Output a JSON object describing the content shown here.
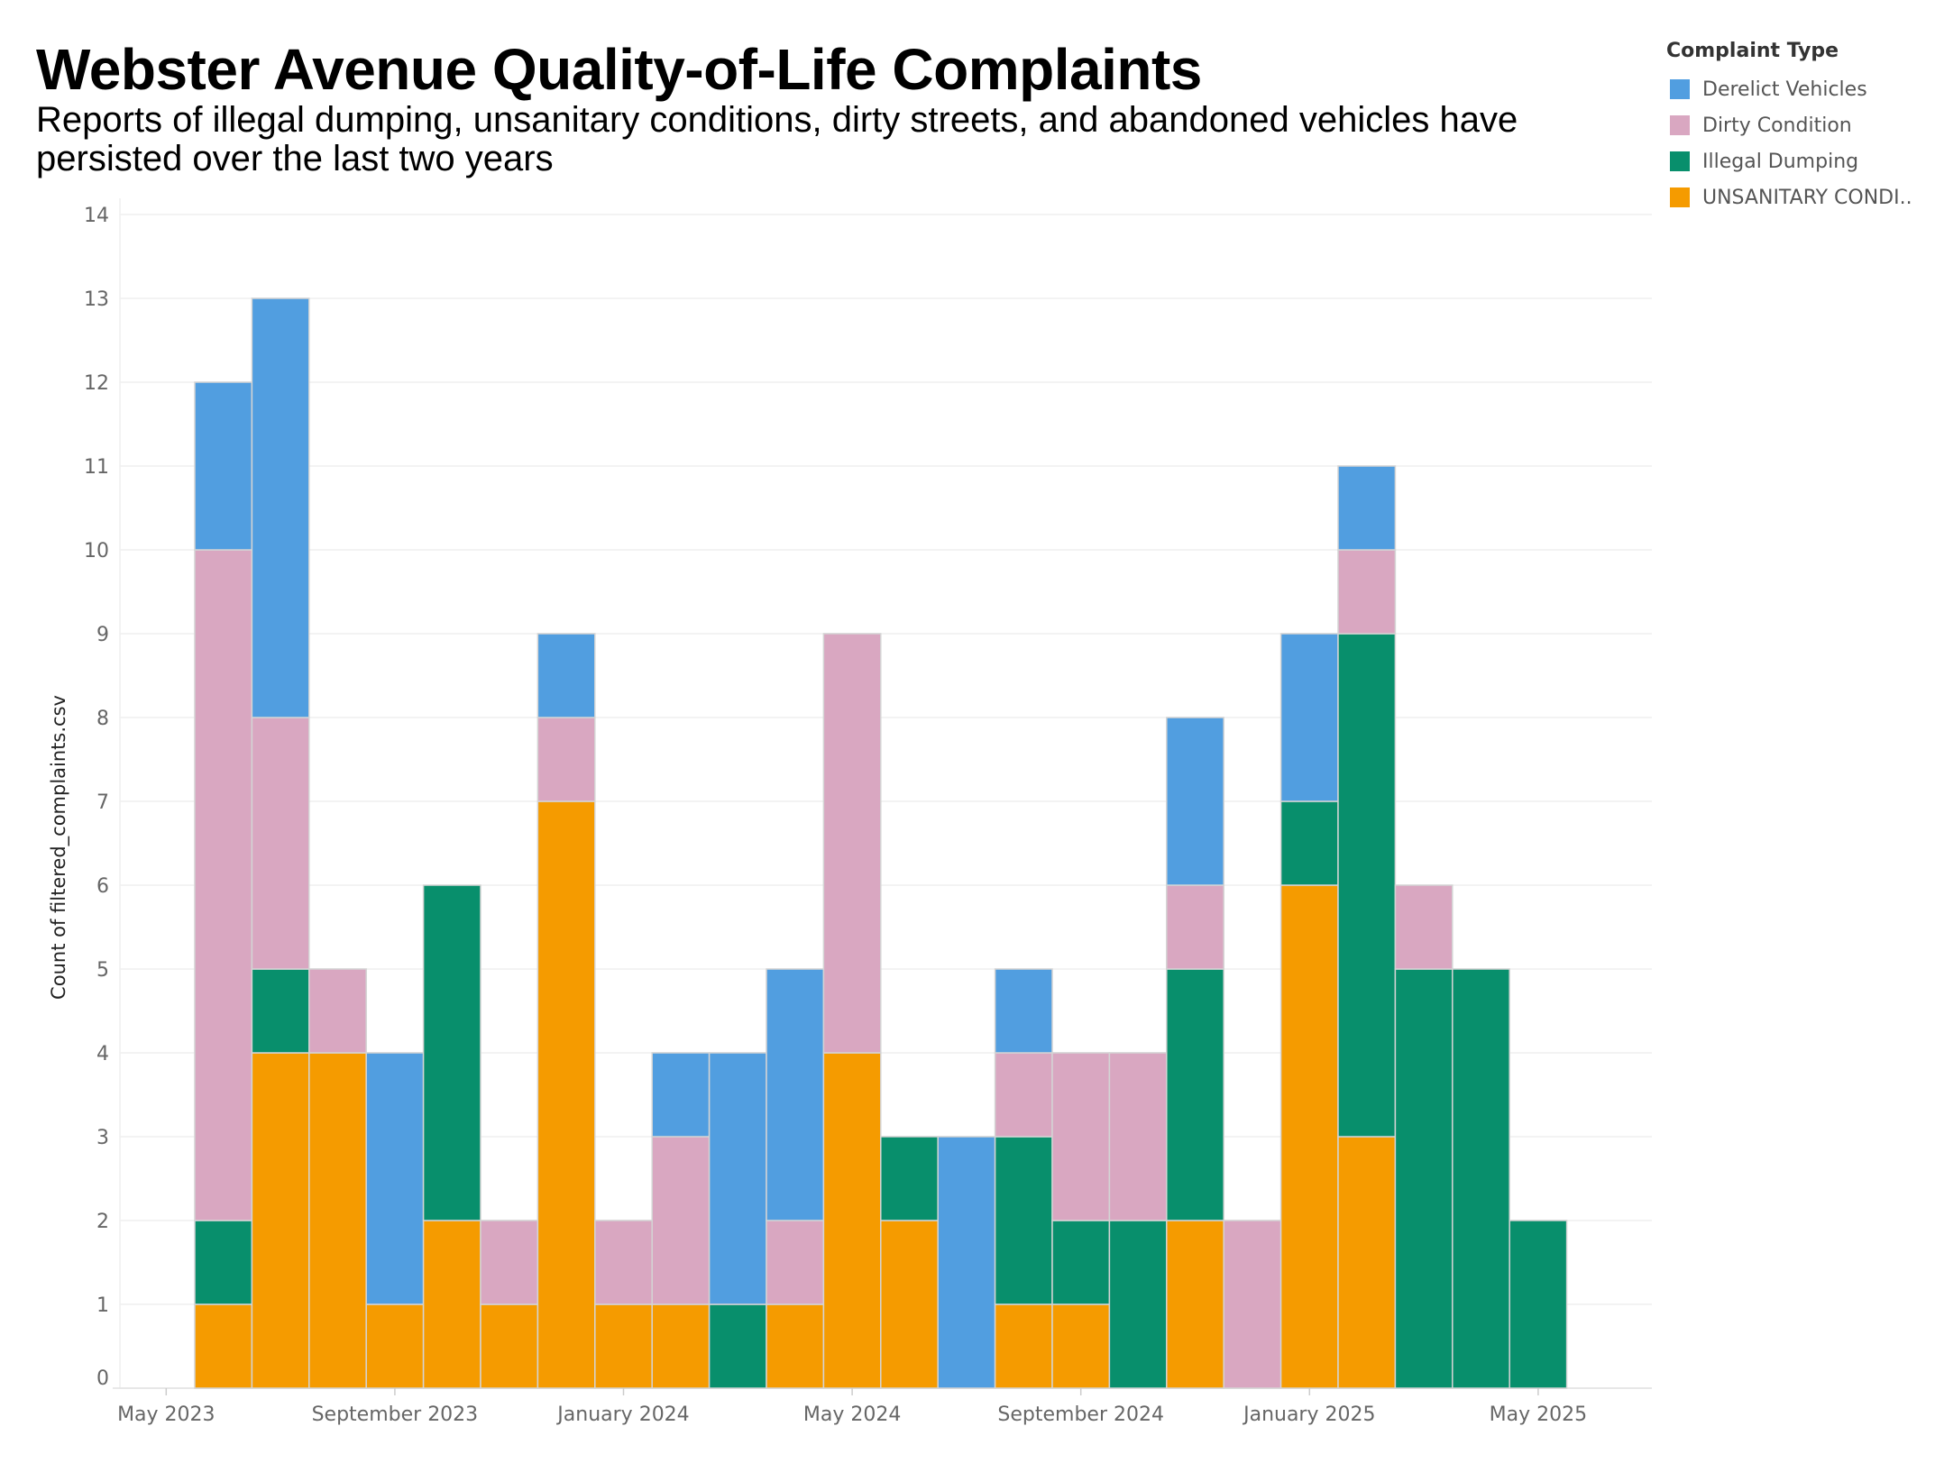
{
  "title": "Webster Avenue Quality-of-Life Complaints",
  "subtitle": "Reports of illegal dumping, unsanitary conditions, dirty streets, and abandoned vehicles have persisted over the last two years",
  "chart_data": {
    "type": "bar",
    "stacked": true,
    "title": "Webster Avenue Quality-of-Life Complaints",
    "subtitle": "Reports of illegal dumping, unsanitary conditions, dirty streets, and abandoned vehicles have persisted over the last two years",
    "xlabel": "",
    "ylabel": "Count of filtered_complaints.csv",
    "ylim": [
      0,
      14
    ],
    "yticks": [
      0,
      1,
      2,
      3,
      4,
      5,
      6,
      7,
      8,
      9,
      10,
      11,
      12,
      13,
      14
    ],
    "xtick_labels": [
      "May 2023",
      "September 2023",
      "January 2024",
      "May 2024",
      "September 2024",
      "January 2025",
      "May 2025"
    ],
    "categories": [
      "2023-06",
      "2023-07",
      "2023-08",
      "2023-09",
      "2023-10",
      "2023-11",
      "2023-12",
      "2024-01",
      "2024-02",
      "2024-03",
      "2024-04",
      "2024-05",
      "2024-06",
      "2024-07",
      "2024-08",
      "2024-09",
      "2024-10",
      "2024-11",
      "2024-12",
      "2025-01",
      "2025-02",
      "2025-03",
      "2025-04",
      "2025-05"
    ],
    "legend": {
      "title": "Complaint Type",
      "position": "top-right"
    },
    "grid": true,
    "series": [
      {
        "name": "UNSANITARY CONDI..",
        "color": "#F59B00",
        "values": [
          1,
          4,
          4,
          1,
          2,
          1,
          7,
          1,
          1,
          0,
          1,
          4,
          2,
          0,
          1,
          1,
          0,
          2,
          0,
          6,
          3,
          0,
          0,
          0
        ]
      },
      {
        "name": "Illegal Dumping",
        "color": "#088F6C",
        "values": [
          1,
          1,
          0,
          0,
          4,
          0,
          0,
          0,
          0,
          1,
          0,
          0,
          1,
          0,
          2,
          1,
          2,
          3,
          0,
          1,
          6,
          5,
          5,
          2
        ]
      },
      {
        "name": "Dirty Condition",
        "color": "#D9A7C1",
        "values": [
          8,
          3,
          1,
          0,
          0,
          1,
          1,
          1,
          2,
          0,
          1,
          5,
          0,
          0,
          1,
          2,
          2,
          1,
          2,
          0,
          1,
          1,
          0,
          0
        ]
      },
      {
        "name": "Derelict Vehicles",
        "color": "#519EE0",
        "values": [
          2,
          5,
          0,
          3,
          0,
          0,
          1,
          0,
          1,
          3,
          3,
          0,
          0,
          3,
          1,
          0,
          0,
          2,
          0,
          2,
          1,
          0,
          0,
          0
        ]
      }
    ]
  },
  "legend_order": [
    "Derelict Vehicles",
    "Dirty Condition",
    "Illegal Dumping",
    "UNSANITARY CONDI.."
  ]
}
